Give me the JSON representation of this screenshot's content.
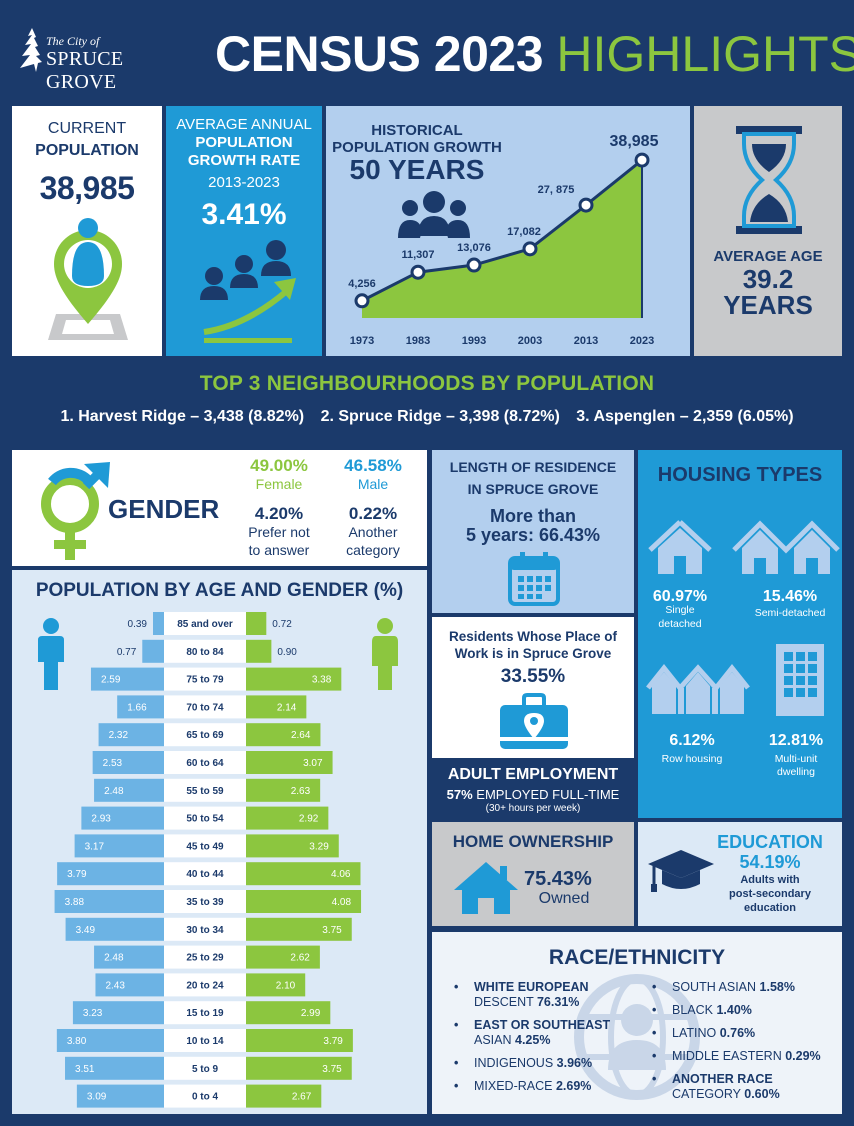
{
  "header": {
    "logo_line1": "The City of",
    "logo_line2": "SPRUCE GROVE",
    "title_main": "CENSUS 2023",
    "title_highlight": "HIGHLIGHTS"
  },
  "current_population": {
    "label1": "CURRENT",
    "label2": "POPULATION",
    "value": "38,985"
  },
  "growth_rate": {
    "label1": "AVERAGE ANNUAL",
    "label2": "POPULATION",
    "label3": "GROWTH RATE",
    "years": "2013-2023",
    "value": "3.41%"
  },
  "historical": {
    "title1": "HISTORICAL",
    "title2": "POPULATION GROWTH",
    "title3": "50 YEARS"
  },
  "average_age": {
    "label": "AVERAGE AGE",
    "value": "39.2",
    "unit": "YEARS"
  },
  "neighbourhoods": {
    "title": "TOP 3 NEIGHBOURHOODS BY POPULATION",
    "items": [
      "1.  Harvest Ridge – 3,438  (8.82%)",
      "2. Spruce Ridge – 3,398  (8.72%)",
      "3. Aspenglen – 2,359  (6.05%)"
    ]
  },
  "gender": {
    "title": "GENDER",
    "female_pct": "49.00%",
    "female_label": "Female",
    "male_pct": "46.58%",
    "male_label": "Male",
    "pna_pct": "4.20%",
    "pna_label1": "Prefer not",
    "pna_label2": "to answer",
    "other_pct": "0.22%",
    "other_label1": "Another",
    "other_label2": "category"
  },
  "residence": {
    "title1": "LENGTH OF RESIDENCE",
    "title2": "IN SPRUCE GROVE",
    "line1": "More than",
    "line2": "5 years: 66.43%"
  },
  "work": {
    "line1": "Residents Whose Place of",
    "line2": "Work is in Spruce Grove",
    "value": "33.55%"
  },
  "employment": {
    "title": "ADULT EMPLOYMENT",
    "pct": "57%",
    "desc": " EMPLOYED FULL-TIME",
    "note": "(30+ hours per week)"
  },
  "home_ownership": {
    "title": "HOME OWNERSHIP",
    "value": "75.43%",
    "label": "Owned"
  },
  "housing": {
    "title": "HOUSING TYPES",
    "items": [
      {
        "pct": "60.97%",
        "label1": "Single",
        "label2": "detached"
      },
      {
        "pct": "15.46%",
        "label1": "Semi-detached",
        "label2": ""
      },
      {
        "pct": "6.12%",
        "label1": "Row housing",
        "label2": ""
      },
      {
        "pct": "12.81%",
        "label1": "Multi-unit",
        "label2": "dwelling"
      }
    ]
  },
  "education": {
    "title": "EDUCATION",
    "value": "54.19%",
    "label1": "Adults with",
    "label2": "post-secondary",
    "label3": "education"
  },
  "race": {
    "title": "RACE/ETHNICITY",
    "left": [
      {
        "text1": "WHITE EUROPEAN",
        "text2": "DESCENT ",
        "pct": "76.31%"
      },
      {
        "text1": "EAST OR SOUTHEAST",
        "text2": "ASIAN ",
        "pct": "4.25%"
      },
      {
        "text1": "",
        "text2": "INDIGENOUS ",
        "pct": "3.96%"
      },
      {
        "text1": "",
        "text2": "MIXED-RACE ",
        "pct": "2.69%"
      }
    ],
    "right": [
      {
        "text1": "",
        "text2": "SOUTH ASIAN ",
        "pct": "1.58%"
      },
      {
        "text1": "",
        "text2": "BLACK ",
        "pct": "1.40%"
      },
      {
        "text1": "",
        "text2": "LATINO ",
        "pct": "0.76%"
      },
      {
        "text1": "",
        "text2": "MIDDLE EASTERN ",
        "pct": "0.29%"
      },
      {
        "text1": "ANOTHER RACE",
        "text2": "CATEGORY ",
        "pct": "0.60%"
      }
    ]
  },
  "colors": {
    "navy": "#1b3a6b",
    "green": "#8cc63f",
    "blue": "#1f9ad6",
    "light_blue": "#b3cfee",
    "grey": "#c8c9cb",
    "male_bar": "#6cb3e4"
  },
  "chart_data": [
    {
      "type": "line",
      "title": "HISTORICAL POPULATION GROWTH 50 YEARS",
      "x": [
        "1973",
        "1983",
        "1993",
        "2003",
        "2013",
        "2023"
      ],
      "values": [
        4256,
        11307,
        13076,
        17082,
        27875,
        38985
      ],
      "labels": [
        "4,256",
        "11,307",
        "13,076",
        "17,082",
        "27, 875",
        "38,985"
      ],
      "ylim": [
        0,
        40000
      ],
      "grid": false
    },
    {
      "type": "bar",
      "title": "POPULATION BY AGE AND GENDER (%)",
      "categories": [
        "85 and over",
        "80 to 84",
        "75 to 79",
        "70 to 74",
        "65 to 69",
        "60 to 64",
        "55 to 59",
        "50 to 54",
        "45 to 49",
        "40 to 44",
        "35 to 39",
        "30 to 34",
        "25 to 29",
        "20 to 24",
        "15 to 19",
        "10 to 14",
        "5 to 9",
        "0 to 4"
      ],
      "series": [
        {
          "name": "",
          "values": [
            0.39,
            0.77,
            2.59,
            1.66,
            2.32,
            2.53,
            2.48,
            2.93,
            3.17,
            3.79,
            3.88,
            3.49,
            2.48,
            2.43,
            3.23,
            3.8,
            3.51,
            3.09
          ]
        },
        {
          "name": "",
          "values": [
            0.72,
            0.9,
            3.38,
            2.14,
            2.64,
            3.07,
            2.63,
            2.92,
            3.29,
            4.06,
            4.08,
            3.75,
            2.62,
            2.1,
            2.99,
            3.79,
            3.75,
            2.67
          ]
        }
      ],
      "labels_left": [
        "0.39",
        "0.77",
        "2.59",
        "1.66",
        "2.32",
        "2.53",
        "2.48",
        "2.93",
        "3.17",
        "3.79",
        "3.88",
        "3.49",
        "2.48",
        "2.43",
        "3.23",
        "3.80",
        "3.51",
        "3.09"
      ],
      "labels_right": [
        "0.72",
        "0.90",
        "3.38",
        "2.14",
        "2.64",
        "3.07",
        "2.63",
        "2.92",
        "3.29",
        "4.06",
        "4.08",
        "3.75",
        "2.62",
        "2.10",
        "2.99",
        "3.79",
        "3.75",
        "2.67"
      ]
    }
  ]
}
